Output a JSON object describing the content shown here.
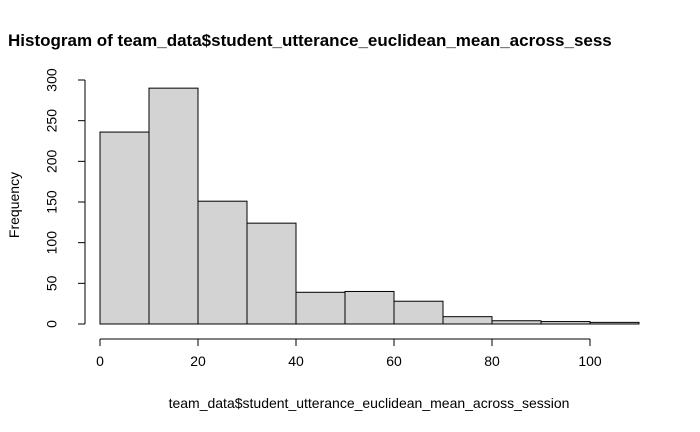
{
  "chart_data": {
    "type": "bar",
    "title": "Histogram of team_data$student_utterance_euclidean_mean_across_sess",
    "xlabel": "team_data$student_utterance_euclidean_mean_across_session",
    "ylabel": "Frequency",
    "bins": [
      {
        "x0": 0,
        "x1": 10,
        "count": 236
      },
      {
        "x0": 10,
        "x1": 20,
        "count": 290
      },
      {
        "x0": 20,
        "x1": 30,
        "count": 151
      },
      {
        "x0": 30,
        "x1": 40,
        "count": 124
      },
      {
        "x0": 40,
        "x1": 50,
        "count": 39
      },
      {
        "x0": 50,
        "x1": 60,
        "count": 40
      },
      {
        "x0": 60,
        "x1": 70,
        "count": 28
      },
      {
        "x0": 70,
        "x1": 80,
        "count": 9
      },
      {
        "x0": 80,
        "x1": 90,
        "count": 4
      },
      {
        "x0": 90,
        "x1": 100,
        "count": 3
      },
      {
        "x0": 100,
        "x1": 110,
        "count": 2
      }
    ],
    "xticks": [
      0,
      20,
      40,
      60,
      80,
      100
    ],
    "yticks": [
      0,
      50,
      100,
      150,
      200,
      250,
      300
    ],
    "xlim": [
      0,
      110
    ],
    "ylim": [
      0,
      300
    ],
    "bar_fill": "#d3d3d3",
    "bar_stroke": "#000000",
    "grid": false
  }
}
